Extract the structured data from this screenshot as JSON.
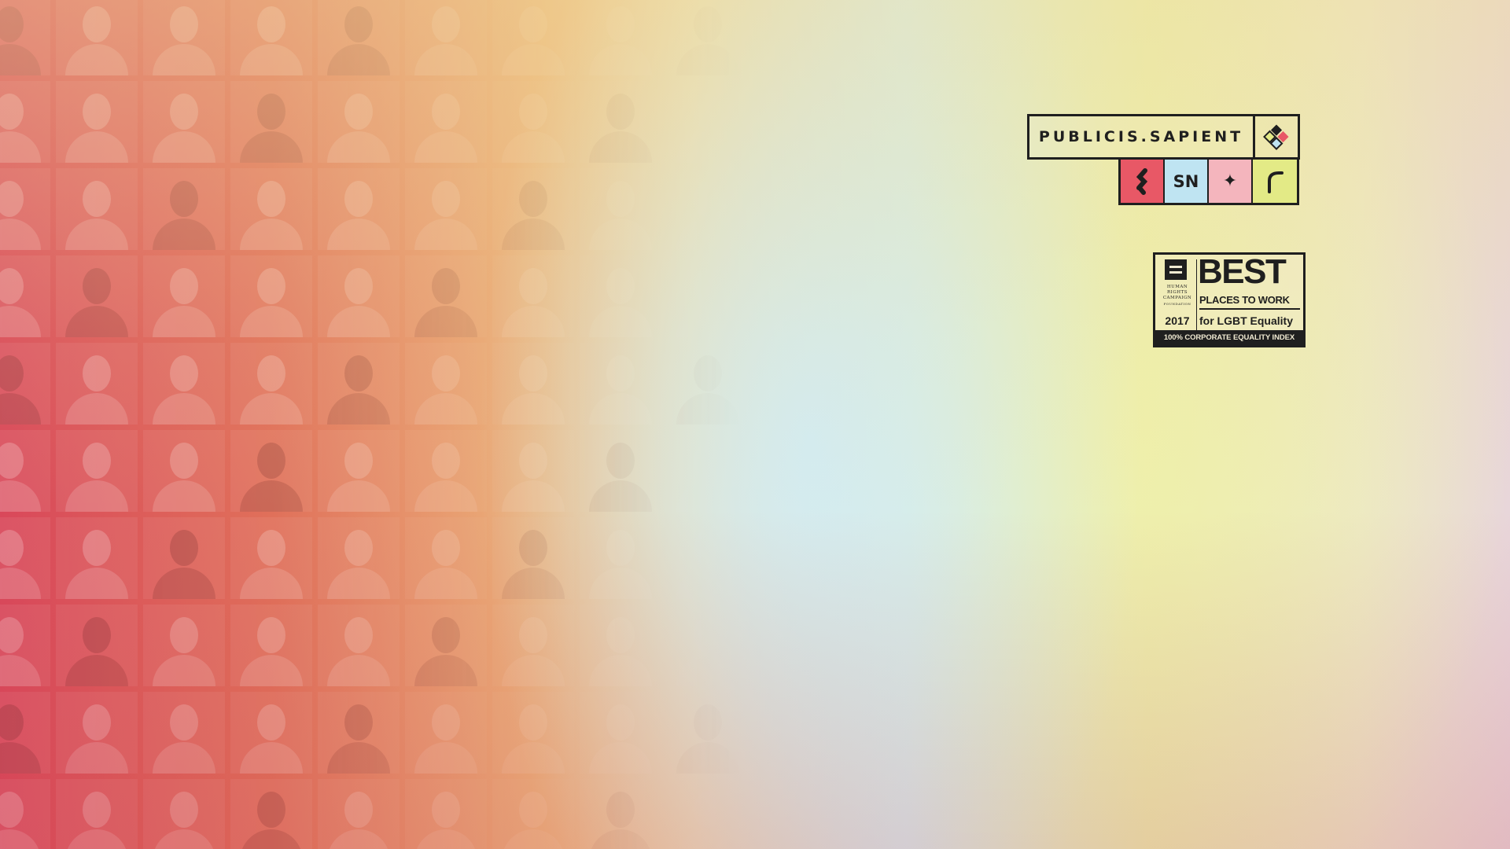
{
  "background": {
    "colors": {
      "red": "#d9485a",
      "orange": "#ecb47c",
      "blue": "#d6eef2",
      "yellow": "#e9edb2",
      "mauve": "#e8d6da"
    },
    "portrait_grid": {
      "rows": 10,
      "columns": 11
    }
  },
  "logo": {
    "wordmark": "PUBLICIS.SAPIENT",
    "mark_icon": "diamond-grid-icon",
    "tiles": [
      {
        "icon": "s-glyph-icon",
        "color": "#e85866"
      },
      {
        "label": "SN",
        "color": "#bfe4f2"
      },
      {
        "label": "✦",
        "icon": "sparkle-icon",
        "color": "#f4b5bd"
      },
      {
        "icon": "arc-icon",
        "color": "#e3ea86"
      }
    ]
  },
  "badge": {
    "org_lines": [
      "HUMAN",
      "RIGHTS",
      "CAMPAIGN",
      "FOUNDATION"
    ],
    "year": "2017",
    "headline": "BEST",
    "subhead": "PLACES TO WORK",
    "tagline": "for LGBT Equality",
    "footer": "100% CORPORATE EQUALITY INDEX"
  }
}
